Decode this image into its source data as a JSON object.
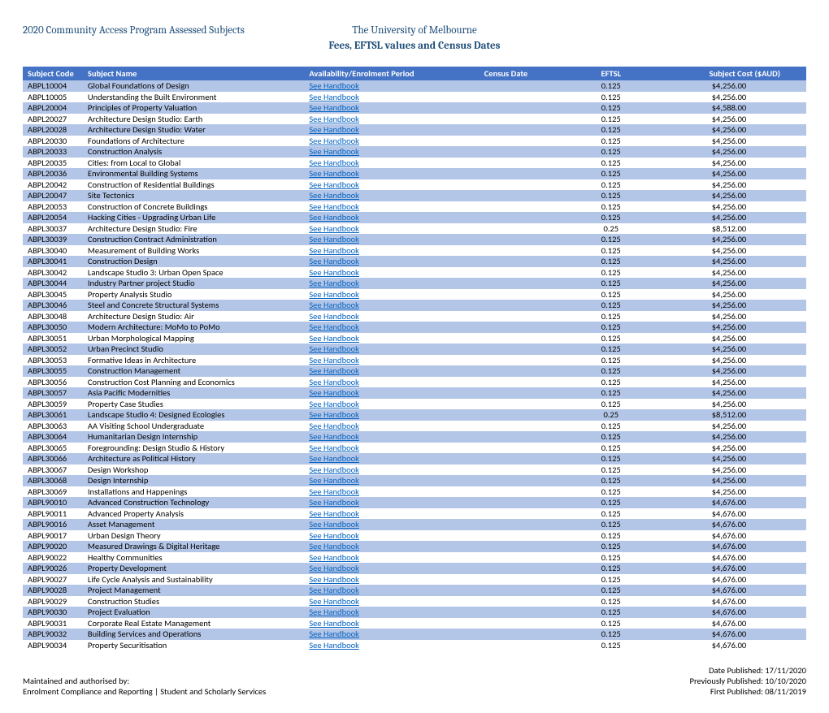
{
  "header": {
    "program_title": "2020 Community Access Program Assessed Subjects",
    "university": "The University of Melbourne",
    "subtitle": "Fees, EFTSL values and Census Dates"
  },
  "columns": [
    "Subject Code",
    "Subject Name",
    "Availability/Enrolment Period",
    "Census Date",
    "EFTSL",
    "Subject Cost ($AUD)"
  ],
  "link_label": "See Handbook",
  "rows": [
    {
      "code": "ABPL10004",
      "name": "Global Foundations of Design",
      "eftsl": "0.125",
      "cost": "$4,256.00"
    },
    {
      "code": "ABPL10005",
      "name": "Understanding the Built Environment",
      "eftsl": "0.125",
      "cost": "$4,256.00"
    },
    {
      "code": "ABPL20004",
      "name": "Principles of Property Valuation",
      "eftsl": "0.125",
      "cost": "$4,588.00"
    },
    {
      "code": "ABPL20027",
      "name": "Architecture Design Studio: Earth",
      "eftsl": "0.125",
      "cost": "$4,256.00"
    },
    {
      "code": "ABPL20028",
      "name": "Architecture Design Studio: Water",
      "eftsl": "0.125",
      "cost": "$4,256.00"
    },
    {
      "code": "ABPL20030",
      "name": "Foundations of Architecture",
      "eftsl": "0.125",
      "cost": "$4,256.00"
    },
    {
      "code": "ABPL20033",
      "name": "Construction Analysis",
      "eftsl": "0.125",
      "cost": "$4,256.00"
    },
    {
      "code": "ABPL20035",
      "name": "Cities: from Local to Global",
      "eftsl": "0.125",
      "cost": "$4,256.00"
    },
    {
      "code": "ABPL20036",
      "name": "Environmental Building Systems",
      "eftsl": "0.125",
      "cost": "$4,256.00"
    },
    {
      "code": "ABPL20042",
      "name": "Construction of Residential Buildings",
      "eftsl": "0.125",
      "cost": "$4,256.00"
    },
    {
      "code": "ABPL20047",
      "name": "Site Tectonics",
      "eftsl": "0.125",
      "cost": "$4,256.00"
    },
    {
      "code": "ABPL20053",
      "name": "Construction of Concrete Buildings",
      "eftsl": "0.125",
      "cost": "$4,256.00"
    },
    {
      "code": "ABPL20054",
      "name": "Hacking Cities - Upgrading Urban Life",
      "eftsl": "0.125",
      "cost": "$4,256.00"
    },
    {
      "code": "ABPL30037",
      "name": "Architecture Design Studio: Fire",
      "eftsl": "0.25",
      "cost": "$8,512.00"
    },
    {
      "code": "ABPL30039",
      "name": "Construction Contract Administration",
      "eftsl": "0.125",
      "cost": "$4,256.00"
    },
    {
      "code": "ABPL30040",
      "name": "Measurement of Building Works",
      "eftsl": "0.125",
      "cost": "$4,256.00"
    },
    {
      "code": "ABPL30041",
      "name": "Construction Design",
      "eftsl": "0.125",
      "cost": "$4,256.00"
    },
    {
      "code": "ABPL30042",
      "name": "Landscape Studio 3: Urban Open Space",
      "eftsl": "0.125",
      "cost": "$4,256.00"
    },
    {
      "code": "ABPL30044",
      "name": "Industry Partner project Studio",
      "eftsl": "0.125",
      "cost": "$4,256.00"
    },
    {
      "code": "ABPL30045",
      "name": "Property Analysis Studio",
      "eftsl": "0.125",
      "cost": "$4,256.00"
    },
    {
      "code": "ABPL30046",
      "name": "Steel and Concrete Structural Systems",
      "eftsl": "0.125",
      "cost": "$4,256.00"
    },
    {
      "code": "ABPL30048",
      "name": "Architecture Design Studio: Air",
      "eftsl": "0.125",
      "cost": "$4,256.00"
    },
    {
      "code": "ABPL30050",
      "name": "Modern Architecture: MoMo to PoMo",
      "eftsl": "0.125",
      "cost": "$4,256.00"
    },
    {
      "code": "ABPL30051",
      "name": "Urban Morphological Mapping",
      "eftsl": "0.125",
      "cost": "$4,256.00"
    },
    {
      "code": "ABPL30052",
      "name": "Urban Precinct Studio",
      "eftsl": "0.125",
      "cost": "$4,256.00"
    },
    {
      "code": "ABPL30053",
      "name": "Formative Ideas in Architecture",
      "eftsl": "0.125",
      "cost": "$4,256.00"
    },
    {
      "code": "ABPL30055",
      "name": "Construction Management",
      "eftsl": "0.125",
      "cost": "$4,256.00"
    },
    {
      "code": "ABPL30056",
      "name": "Construction Cost Planning and Economics",
      "eftsl": "0.125",
      "cost": "$4,256.00"
    },
    {
      "code": "ABPL30057",
      "name": "Asia Pacific Modernities",
      "eftsl": "0.125",
      "cost": "$4,256.00"
    },
    {
      "code": "ABPL30059",
      "name": "Property Case Studies",
      "eftsl": "0.125",
      "cost": "$4,256.00"
    },
    {
      "code": "ABPL30061",
      "name": "Landscape Studio 4: Designed Ecologies",
      "eftsl": "0.25",
      "cost": "$8,512.00"
    },
    {
      "code": "ABPL30063",
      "name": "AA Visiting School Undergraduate",
      "eftsl": "0.125",
      "cost": "$4,256.00"
    },
    {
      "code": "ABPL30064",
      "name": "Humanitarian Design Internship",
      "eftsl": "0.125",
      "cost": "$4,256.00"
    },
    {
      "code": "ABPL30065",
      "name": "Foregrounding: Design Studio & History",
      "eftsl": "0.125",
      "cost": "$4,256.00"
    },
    {
      "code": "ABPL30066",
      "name": "Architecture as Political History",
      "eftsl": "0.125",
      "cost": "$4,256.00"
    },
    {
      "code": "ABPL30067",
      "name": "Design Workshop",
      "eftsl": "0.125",
      "cost": "$4,256.00"
    },
    {
      "code": "ABPL30068",
      "name": "Design Internship",
      "eftsl": "0.125",
      "cost": "$4,256.00"
    },
    {
      "code": "ABPL30069",
      "name": "Installations and Happenings",
      "eftsl": "0.125",
      "cost": "$4,256.00"
    },
    {
      "code": "ABPL90010",
      "name": "Advanced Construction Technology",
      "eftsl": "0.125",
      "cost": "$4,676.00"
    },
    {
      "code": "ABPL90011",
      "name": "Advanced Property Analysis",
      "eftsl": "0.125",
      "cost": "$4,676.00"
    },
    {
      "code": "ABPL90016",
      "name": "Asset Management",
      "eftsl": "0.125",
      "cost": "$4,676.00"
    },
    {
      "code": "ABPL90017",
      "name": "Urban Design Theory",
      "eftsl": "0.125",
      "cost": "$4,676.00"
    },
    {
      "code": "ABPL90020",
      "name": "Measured Drawings & Digital Heritage",
      "eftsl": "0.125",
      "cost": "$4,676.00"
    },
    {
      "code": "ABPL90022",
      "name": "Healthy Communities",
      "eftsl": "0.125",
      "cost": "$4,676.00"
    },
    {
      "code": "ABPL90026",
      "name": "Property Development",
      "eftsl": "0.125",
      "cost": "$4,676.00"
    },
    {
      "code": "ABPL90027",
      "name": "Life Cycle Analysis and Sustainability",
      "eftsl": "0.125",
      "cost": "$4,676.00"
    },
    {
      "code": "ABPL90028",
      "name": "Project Management",
      "eftsl": "0.125",
      "cost": "$4,676.00"
    },
    {
      "code": "ABPL90029",
      "name": "Construction Studies",
      "eftsl": "0.125",
      "cost": "$4,676.00"
    },
    {
      "code": "ABPL90030",
      "name": "Project Evaluation",
      "eftsl": "0.125",
      "cost": "$4,676.00"
    },
    {
      "code": "ABPL90031",
      "name": "Corporate Real Estate Management",
      "eftsl": "0.125",
      "cost": "$4,676.00"
    },
    {
      "code": "ABPL90032",
      "name": "Building Services and Operations",
      "eftsl": "0.125",
      "cost": "$4,676.00"
    },
    {
      "code": "ABPL90034",
      "name": "Property Securitisation",
      "eftsl": "0.125",
      "cost": "$4,676.00"
    }
  ],
  "footer": {
    "maintained_by": "Maintained and authorised by:",
    "dept": "Enrolment Compliance and Reporting  |  Student and Scholarly Services",
    "date_published": "Date Published: 17/11/2020",
    "prev_published": "Previously Published: 10/10/2020",
    "first_published": "First Published: 08/11/2019"
  },
  "style": {
    "header_bg": "#4472c4",
    "band_bg": "#b4c6e7",
    "link_color": "#0563c1",
    "header_text_color": "#1f4e79"
  }
}
